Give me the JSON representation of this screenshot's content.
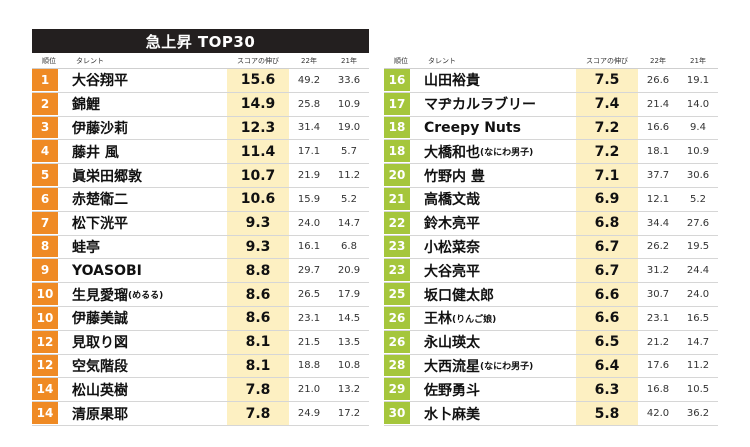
{
  "title": "急上昇 TOP30",
  "headers": {
    "rank": "順位",
    "name": "タレント",
    "score": "スコアの伸び",
    "y22": "22年",
    "y21": "21年"
  },
  "left_rows": [
    {
      "rank": "1",
      "name": "大谷翔平",
      "note": "",
      "score": "15.6",
      "y22": "49.2",
      "y21": "33.6"
    },
    {
      "rank": "2",
      "name": "錦鯉",
      "note": "",
      "score": "14.9",
      "y22": "25.8",
      "y21": "10.9"
    },
    {
      "rank": "3",
      "name": "伊藤沙莉",
      "note": "",
      "score": "12.3",
      "y22": "31.4",
      "y21": "19.0"
    },
    {
      "rank": "4",
      "name": "藤井 風",
      "note": "",
      "score": "11.4",
      "y22": "17.1",
      "y21": "5.7"
    },
    {
      "rank": "5",
      "name": "眞栄田郷敦",
      "note": "",
      "score": "10.7",
      "y22": "21.9",
      "y21": "11.2"
    },
    {
      "rank": "6",
      "name": "赤楚衛二",
      "note": "",
      "score": "10.6",
      "y22": "15.9",
      "y21": "5.2"
    },
    {
      "rank": "7",
      "name": "松下洸平",
      "note": "",
      "score": "9.3",
      "y22": "24.0",
      "y21": "14.7"
    },
    {
      "rank": "8",
      "name": "蛙亭",
      "note": "",
      "score": "9.3",
      "y22": "16.1",
      "y21": "6.8"
    },
    {
      "rank": "9",
      "name": "YOASOBI",
      "note": "",
      "score": "8.8",
      "y22": "29.7",
      "y21": "20.9"
    },
    {
      "rank": "10",
      "name": "生見愛瑠",
      "note": "(めるる)",
      "score": "8.6",
      "y22": "26.5",
      "y21": "17.9"
    },
    {
      "rank": "10",
      "name": "伊藤美誠",
      "note": "",
      "score": "8.6",
      "y22": "23.1",
      "y21": "14.5"
    },
    {
      "rank": "12",
      "name": "見取り図",
      "note": "",
      "score": "8.1",
      "y22": "21.5",
      "y21": "13.5"
    },
    {
      "rank": "12",
      "name": "空気階段",
      "note": "",
      "score": "8.1",
      "y22": "18.8",
      "y21": "10.8"
    },
    {
      "rank": "14",
      "name": "松山英樹",
      "note": "",
      "score": "7.8",
      "y22": "21.0",
      "y21": "13.2"
    },
    {
      "rank": "14",
      "name": "清原果耶",
      "note": "",
      "score": "7.8",
      "y22": "24.9",
      "y21": "17.2"
    }
  ],
  "right_rows": [
    {
      "rank": "16",
      "name": "山田裕貴",
      "note": "",
      "score": "7.5",
      "y22": "26.6",
      "y21": "19.1"
    },
    {
      "rank": "17",
      "name": "マヂカルラブリー",
      "note": "",
      "score": "7.4",
      "y22": "21.4",
      "y21": "14.0"
    },
    {
      "rank": "18",
      "name": "Creepy Nuts",
      "note": "",
      "score": "7.2",
      "y22": "16.6",
      "y21": "9.4"
    },
    {
      "rank": "18",
      "name": "大橋和也",
      "note": "(なにわ男子)",
      "score": "7.2",
      "y22": "18.1",
      "y21": "10.9"
    },
    {
      "rank": "20",
      "name": "竹野内 豊",
      "note": "",
      "score": "7.1",
      "y22": "37.7",
      "y21": "30.6"
    },
    {
      "rank": "21",
      "name": "高橋文哉",
      "note": "",
      "score": "6.9",
      "y22": "12.1",
      "y21": "5.2"
    },
    {
      "rank": "22",
      "name": "鈴木亮平",
      "note": "",
      "score": "6.8",
      "y22": "34.4",
      "y21": "27.6"
    },
    {
      "rank": "23",
      "name": "小松菜奈",
      "note": "",
      "score": "6.7",
      "y22": "26.2",
      "y21": "19.5"
    },
    {
      "rank": "23",
      "name": "大谷亮平",
      "note": "",
      "score": "6.7",
      "y22": "31.2",
      "y21": "24.4"
    },
    {
      "rank": "25",
      "name": "坂口健太郎",
      "note": "",
      "score": "6.6",
      "y22": "30.7",
      "y21": "24.0"
    },
    {
      "rank": "26",
      "name": "王林",
      "note": "(りんご娘)",
      "score": "6.6",
      "y22": "23.1",
      "y21": "16.5"
    },
    {
      "rank": "26",
      "name": "永山瑛太",
      "note": "",
      "score": "6.5",
      "y22": "21.2",
      "y21": "14.7"
    },
    {
      "rank": "28",
      "name": "大西流星",
      "note": "(なにわ男子)",
      "score": "6.4",
      "y22": "17.6",
      "y21": "11.2"
    },
    {
      "rank": "29",
      "name": "佐野勇斗",
      "note": "",
      "score": "6.3",
      "y22": "16.8",
      "y21": "10.5"
    },
    {
      "rank": "30",
      "name": "水卜麻美",
      "note": "",
      "score": "5.8",
      "y22": "42.0",
      "y21": "36.2"
    }
  ],
  "colors": {
    "rank_left": "#ef8a24",
    "rank_right": "#a5c63c",
    "score_bg": "#fdf0c2",
    "title_bg": "#231f1f"
  }
}
